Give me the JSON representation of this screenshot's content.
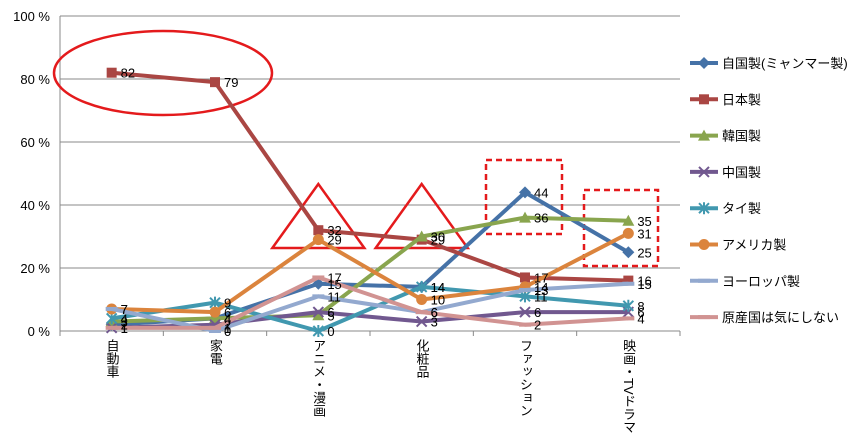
{
  "chart_data": {
    "type": "line",
    "title": "",
    "xlabel": "",
    "ylabel": "",
    "ylim": [
      0,
      100
    ],
    "y_ticks": [
      "0 %",
      "20 %",
      "40 %",
      "60 %",
      "80 %",
      "100 %"
    ],
    "categories": [
      "自動車",
      "家電",
      "アニメ・漫画",
      "化粧品",
      "ファッション",
      "映画・TVドラマ"
    ],
    "grid": true,
    "legend_position": "right",
    "series": [
      {
        "name": "自国製(ミャンマー製)",
        "color": "#4572A7",
        "marker": "diamond",
        "values": [
          2,
          4,
          15,
          14,
          44,
          25
        ]
      },
      {
        "name": "日本製",
        "color": "#AA4643",
        "marker": "square",
        "values": [
          82,
          79,
          32,
          29,
          17,
          16
        ]
      },
      {
        "name": "韓国製",
        "color": "#89A54E",
        "marker": "triangle",
        "values": [
          3,
          4,
          5,
          30,
          36,
          35
        ]
      },
      {
        "name": "中国製",
        "color": "#71588F",
        "marker": "x",
        "values": [
          1,
          2,
          6,
          3,
          6,
          6
        ]
      },
      {
        "name": "タイ製",
        "color": "#4198AF",
        "marker": "star",
        "values": [
          4,
          9,
          0,
          14,
          11,
          8
        ]
      },
      {
        "name": "アメリカ製",
        "color": "#DB843D",
        "marker": "circle",
        "values": [
          7,
          6,
          29,
          10,
          14,
          31
        ]
      },
      {
        "name": "ヨーロッパ製",
        "color": "#93A9CF",
        "marker": "bar",
        "values": [
          7,
          0,
          11,
          6,
          13,
          15
        ]
      },
      {
        "name": "原産国は気にしない",
        "color": "#D19392",
        "marker": "bar",
        "values": [
          1,
          1,
          17,
          6,
          2,
          4
        ]
      }
    ],
    "annotations": [
      {
        "shape": "ellipse",
        "color": "#E41A1C",
        "around": "日本製 @ 自動車・家電"
      },
      {
        "shape": "triangle",
        "color": "#E41A1C",
        "around": "アニメ・漫画"
      },
      {
        "shape": "triangle",
        "color": "#E41A1C",
        "around": "化粧品"
      },
      {
        "shape": "dashed-rect",
        "color": "#E41A1C",
        "around": "ファッション"
      },
      {
        "shape": "dashed-rect",
        "color": "#E41A1C",
        "around": "映画・TVドラマ"
      }
    ]
  }
}
